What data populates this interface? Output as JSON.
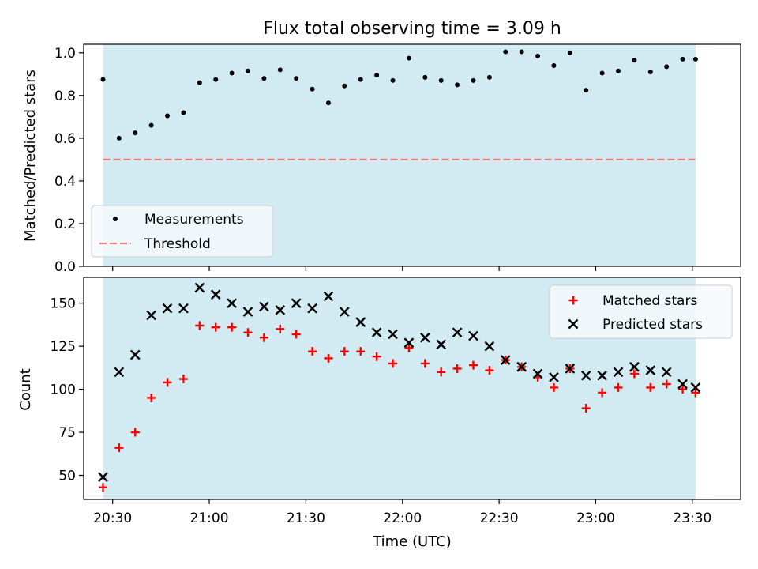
{
  "figure": {
    "title": "Flux total observing time = 3.09 h",
    "xlabel": "Time (UTC)"
  },
  "colors": {
    "shade": "#add8e6",
    "threshold": "#f08080",
    "measurement": "#000000",
    "matched": "#ff0000",
    "predicted": "#000000",
    "legend_bg": "#f6f9fb"
  },
  "chart_data": [
    {
      "type": "scatter",
      "panel": "top",
      "xlabel": "",
      "ylabel": "Matched/Predicted stars",
      "ylim": [
        0,
        1.04
      ],
      "yticks": [
        0.0,
        0.2,
        0.4,
        0.6,
        0.8,
        1.0
      ],
      "ytick_labels": [
        "0.0",
        "0.2",
        "0.4",
        "0.6",
        "0.8",
        "1.0"
      ],
      "xlim": [
        "20:21",
        "23:45"
      ],
      "xticks": [
        "20:30",
        "21:00",
        "21:30",
        "22:00",
        "22:30",
        "23:00",
        "23:30"
      ],
      "x_tick_labels_shown": false,
      "shaded_interval": [
        "20:27",
        "23:31"
      ],
      "legend": {
        "position": "lower-left",
        "entries": [
          "Measurements",
          "Threshold"
        ]
      },
      "threshold": {
        "name": "Threshold",
        "value": 0.5
      },
      "series": [
        {
          "name": "Measurements",
          "marker": "dot",
          "x": [
            "20:27",
            "20:32",
            "20:37",
            "20:42",
            "20:47",
            "20:52",
            "20:57",
            "21:02",
            "21:07",
            "21:12",
            "21:17",
            "21:22",
            "21:27",
            "21:32",
            "21:37",
            "21:42",
            "21:47",
            "21:52",
            "21:57",
            "22:02",
            "22:07",
            "22:12",
            "22:17",
            "22:22",
            "22:27",
            "22:32",
            "22:37",
            "22:42",
            "22:47",
            "22:52",
            "22:57",
            "23:02",
            "23:07",
            "23:12",
            "23:17",
            "23:22",
            "23:27",
            "23:31"
          ],
          "y": [
            0.875,
            0.6,
            0.625,
            0.66,
            0.705,
            0.72,
            0.86,
            0.875,
            0.905,
            0.915,
            0.88,
            0.92,
            0.88,
            0.83,
            0.765,
            0.845,
            0.875,
            0.895,
            0.87,
            0.975,
            0.885,
            0.87,
            0.85,
            0.87,
            0.885,
            1.005,
            1.005,
            0.985,
            0.94,
            1.0,
            0.825,
            0.905,
            0.915,
            0.965,
            0.91,
            0.935,
            0.97,
            0.97
          ]
        }
      ]
    },
    {
      "type": "scatter",
      "panel": "bottom",
      "xlabel": "Time (UTC)",
      "ylabel": "Count",
      "ylim": [
        36,
        165
      ],
      "yticks": [
        50,
        75,
        100,
        125,
        150
      ],
      "ytick_labels": [
        "50",
        "75",
        "100",
        "125",
        "150"
      ],
      "xlim": [
        "20:21",
        "23:45"
      ],
      "xticks": [
        "20:30",
        "21:00",
        "21:30",
        "22:00",
        "22:30",
        "23:00",
        "23:30"
      ],
      "xtick_labels": [
        "20:30",
        "21:00",
        "21:30",
        "22:00",
        "22:30",
        "23:00",
        "23:30"
      ],
      "shaded_interval": [
        "20:27",
        "23:31"
      ],
      "legend": {
        "position": "top-right",
        "entries": [
          "Matched stars",
          "Predicted stars"
        ]
      },
      "series": [
        {
          "name": "Matched stars",
          "marker": "plus",
          "x": [
            "20:27",
            "20:32",
            "20:37",
            "20:42",
            "20:47",
            "20:52",
            "20:57",
            "21:02",
            "21:07",
            "21:12",
            "21:17",
            "21:22",
            "21:27",
            "21:32",
            "21:37",
            "21:42",
            "21:47",
            "21:52",
            "21:57",
            "22:02",
            "22:07",
            "22:12",
            "22:17",
            "22:22",
            "22:27",
            "22:32",
            "22:37",
            "22:42",
            "22:47",
            "22:52",
            "22:57",
            "23:02",
            "23:07",
            "23:12",
            "23:17",
            "23:22",
            "23:27",
            "23:31"
          ],
          "y": [
            43,
            66,
            75,
            95,
            104,
            106,
            137,
            136,
            136,
            133,
            130,
            135,
            132,
            122,
            118,
            122,
            122,
            119,
            115,
            124,
            115,
            110,
            112,
            114,
            111,
            117,
            113,
            107,
            101,
            112,
            89,
            98,
            101,
            109,
            101,
            103,
            100,
            98
          ]
        },
        {
          "name": "Predicted stars",
          "marker": "x",
          "x": [
            "20:27",
            "20:32",
            "20:37",
            "20:42",
            "20:47",
            "20:52",
            "20:57",
            "21:02",
            "21:07",
            "21:12",
            "21:17",
            "21:22",
            "21:27",
            "21:32",
            "21:37",
            "21:42",
            "21:47",
            "21:52",
            "21:57",
            "22:02",
            "22:07",
            "22:12",
            "22:17",
            "22:22",
            "22:27",
            "22:32",
            "22:37",
            "22:42",
            "22:47",
            "22:52",
            "22:57",
            "23:02",
            "23:07",
            "23:12",
            "23:17",
            "23:22",
            "23:27",
            "23:31"
          ],
          "y": [
            49,
            110,
            120,
            143,
            147,
            147,
            159,
            155,
            150,
            145,
            148,
            146,
            150,
            147,
            154,
            145,
            139,
            133,
            132,
            127,
            130,
            126,
            133,
            131,
            125,
            117,
            113,
            109,
            107,
            112,
            108,
            108,
            110,
            113,
            111,
            110,
            103,
            101
          ]
        }
      ]
    }
  ]
}
